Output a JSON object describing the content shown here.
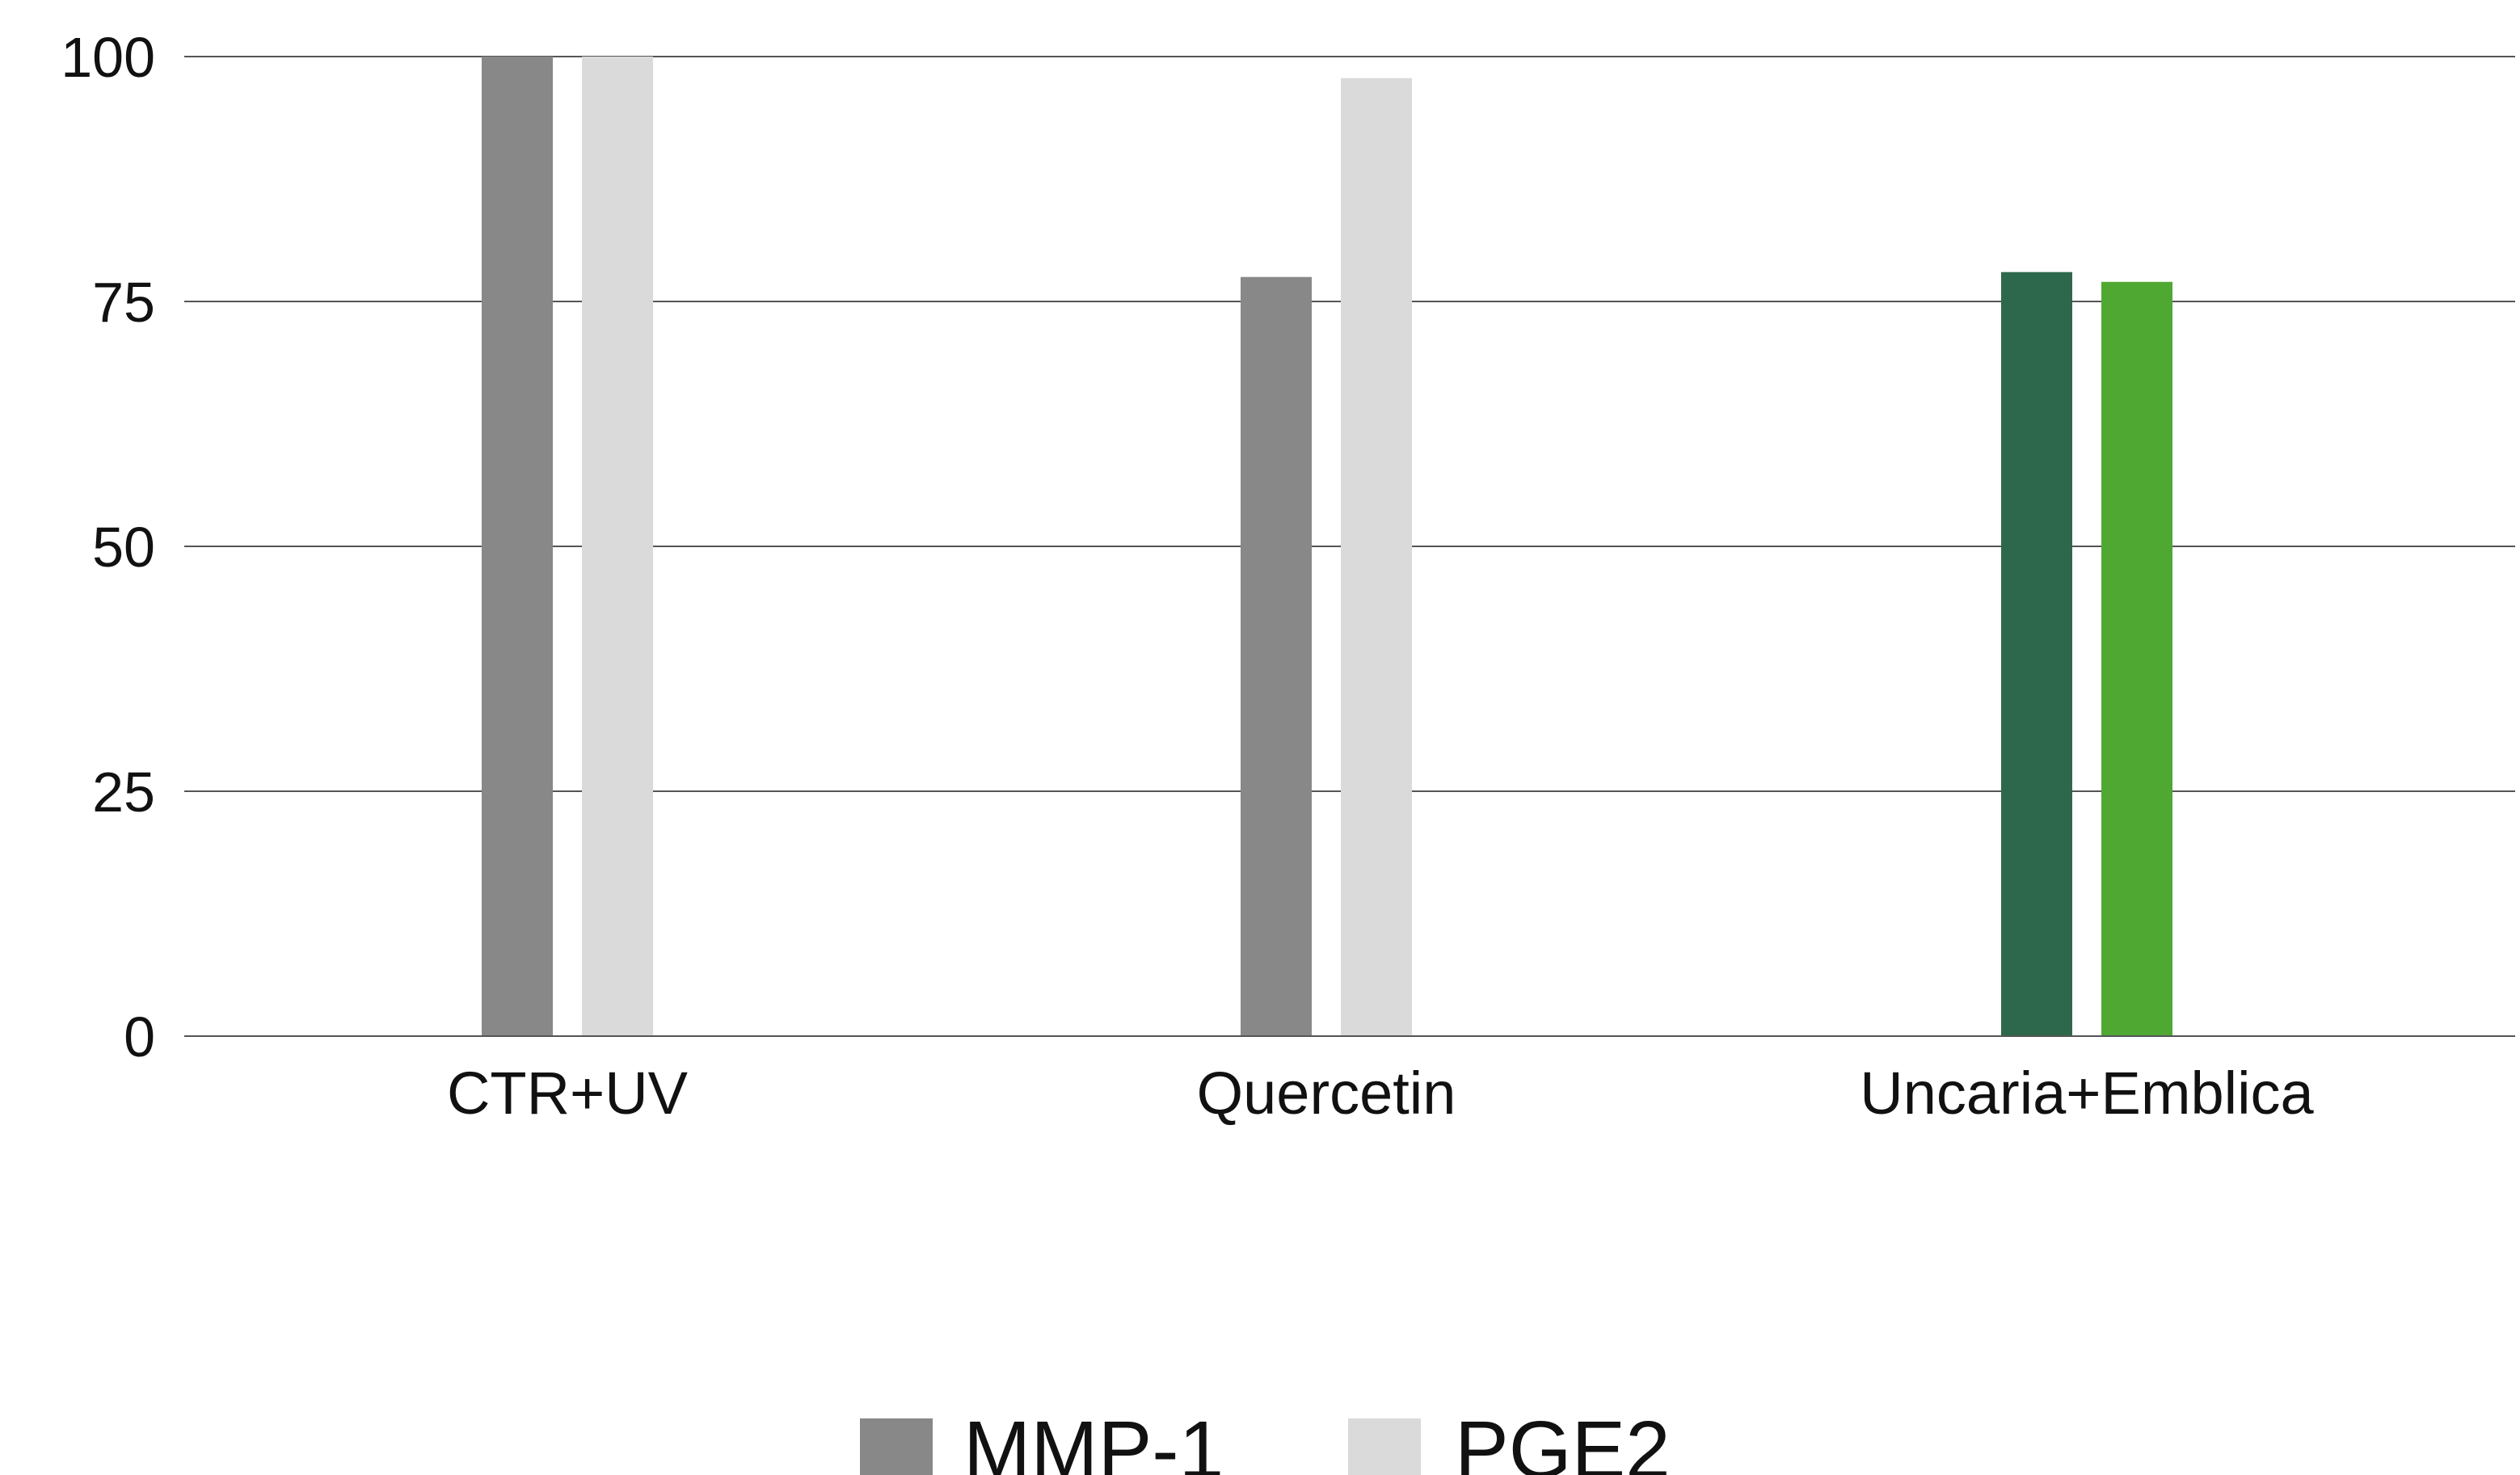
{
  "chart_data": {
    "type": "bar",
    "title": "",
    "xlabel": "",
    "ylabel": "",
    "categories": [
      "CTR+UV",
      "Quercetin",
      "Uncaria+Emblica"
    ],
    "series": [
      {
        "name": "MMP-1",
        "values": [
          100,
          77.5,
          78
        ]
      },
      {
        "name": "PGE2",
        "values": [
          100,
          97.8,
          77
        ]
      }
    ],
    "ylim": [
      0,
      100
    ],
    "yticks": [
      0,
      25,
      50,
      75,
      100
    ],
    "grid": true,
    "legend": "bottom-center",
    "colors": {
      "MMP-1": "#888888",
      "PGE2": "#dadada",
      "highlight_MMP-1": "#2d684c",
      "highlight_PGE2": "#4fa832"
    },
    "highlighted_category": "Uncaria+Emblica"
  }
}
